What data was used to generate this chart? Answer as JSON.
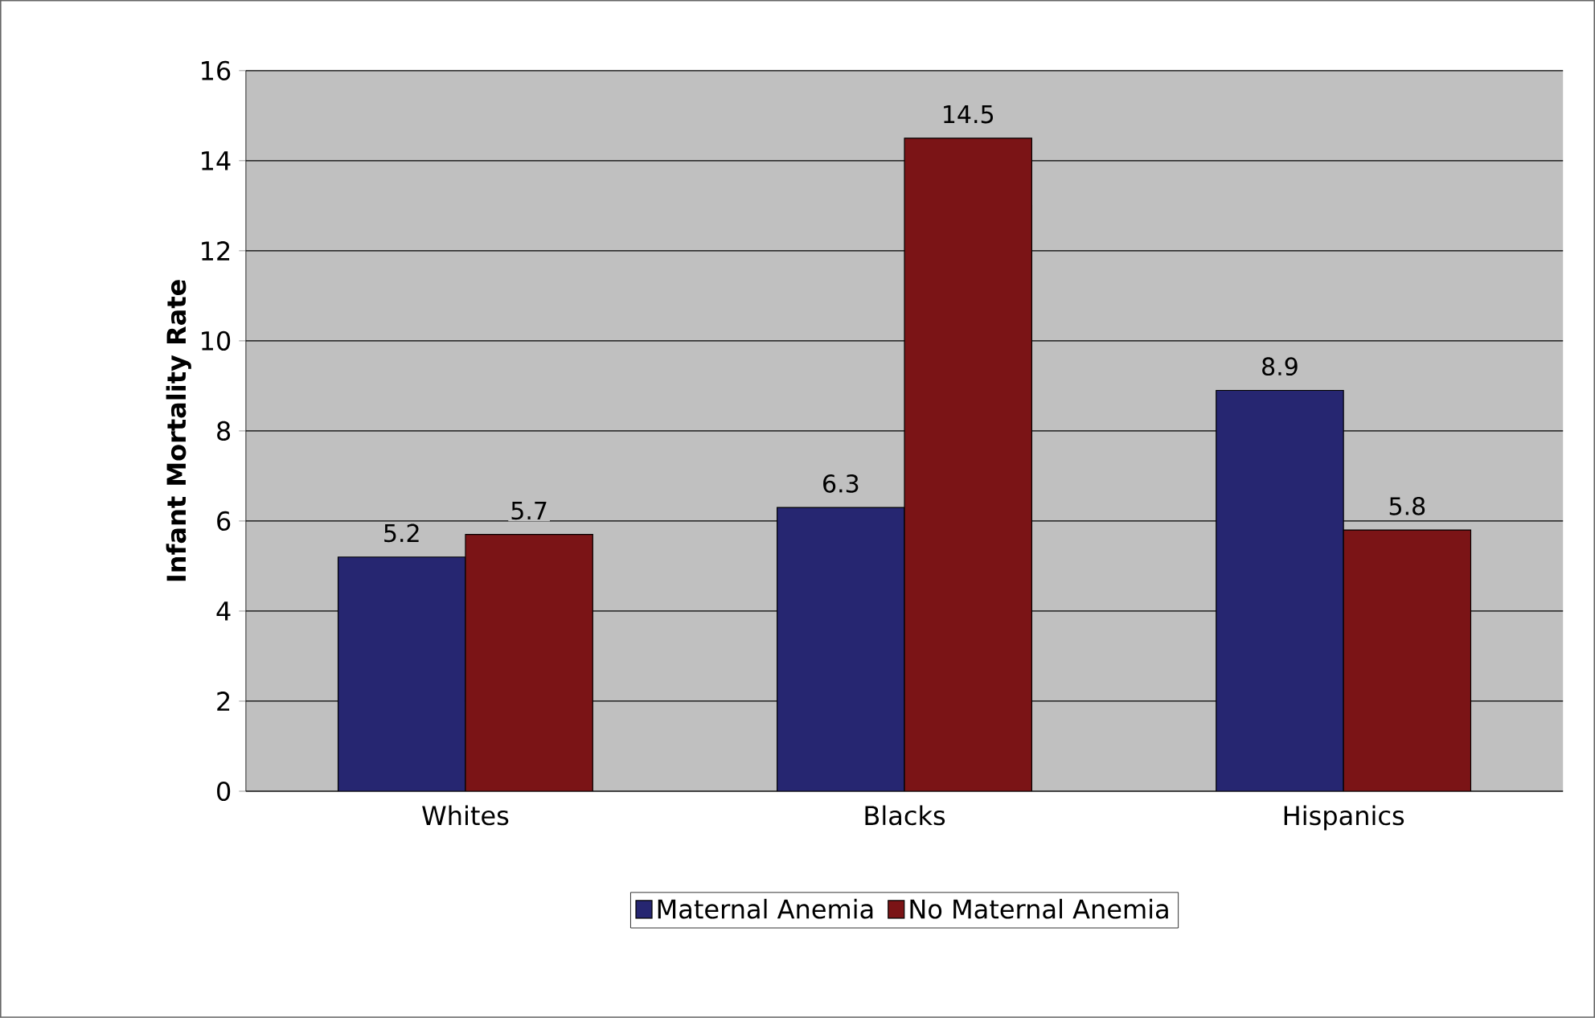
{
  "chart_data": {
    "type": "bar",
    "ylabel": "Infant Mortality Rate",
    "categories": [
      "Whites",
      "Blacks",
      "Hispanics"
    ],
    "series": [
      {
        "name": "Maternal Anemia",
        "color": "#262671",
        "values": [
          5.2,
          6.3,
          8.9
        ]
      },
      {
        "name": "No Maternal Anemia",
        "color": "#7b1416",
        "values": [
          5.7,
          14.5,
          5.8
        ]
      }
    ],
    "ylim": [
      0,
      16
    ],
    "yticks": [
      0,
      2,
      4,
      6,
      8,
      10,
      12,
      14,
      16
    ],
    "grid": "y",
    "legend": "bottom",
    "data_labels": true
  }
}
